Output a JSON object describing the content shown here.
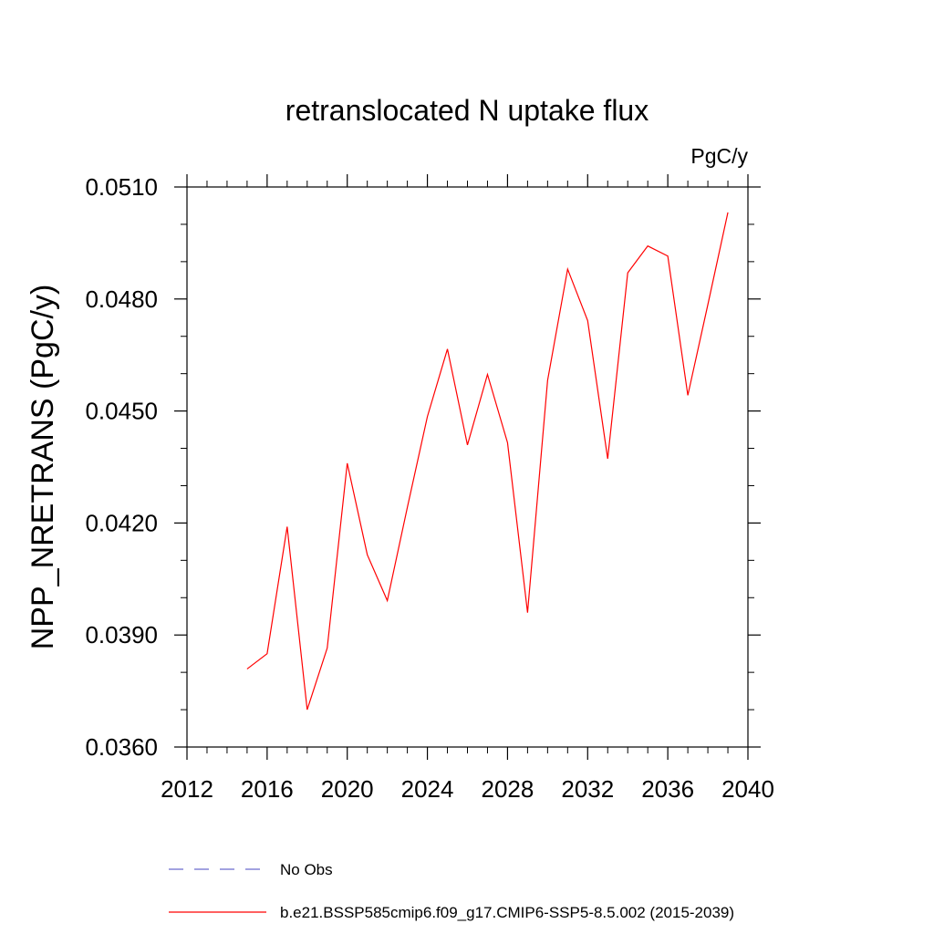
{
  "chart_data": {
    "type": "line",
    "title": "retranslocated N uptake flux",
    "units_label": "PgC/y",
    "ylabel": "NPP_NRETRANS  (PgC/y)",
    "xlabel": "",
    "xlim": [
      2012,
      2040
    ],
    "ylim": [
      0.036,
      0.051
    ],
    "x_ticks": [
      2012,
      2016,
      2020,
      2024,
      2028,
      2032,
      2036,
      2040
    ],
    "x_tick_labels": [
      "2012",
      "2016",
      "2020",
      "2024",
      "2028",
      "2032",
      "2036",
      "2040"
    ],
    "y_ticks": [
      0.036,
      0.039,
      0.042,
      0.045,
      0.048,
      0.051
    ],
    "y_tick_labels": [
      "0.0360",
      "0.0390",
      "0.0420",
      "0.0450",
      "0.0480",
      "0.0510"
    ],
    "x": [
      2015,
      2016,
      2017,
      2018,
      2019,
      2020,
      2021,
      2022,
      2023,
      2024,
      2025,
      2026,
      2027,
      2028,
      2029,
      2030,
      2031,
      2032,
      2033,
      2034,
      2035,
      2036,
      2037,
      2038,
      2039
    ],
    "series": [
      {
        "name": "b.e21.BSSP585cmip6.f09_g17.CMIP6-SSP5-8.5.002 (2015-2039)",
        "color": "#ff0000",
        "values": [
          0.03809,
          0.0385,
          0.0419,
          0.037,
          0.03865,
          0.0436,
          0.04115,
          0.03992,
          0.04242,
          0.04485,
          0.04666,
          0.04409,
          0.04598,
          0.04415,
          0.0396,
          0.04582,
          0.0488,
          0.04742,
          0.04372,
          0.0487,
          0.04942,
          0.04915,
          0.04542,
          0.04785,
          0.05032
        ]
      }
    ],
    "legend": [
      {
        "label": "No Obs",
        "color": "#6a6acd",
        "style": "dashed"
      },
      {
        "label": "b.e21.BSSP585cmip6.f09_g17.CMIP6-SSP5-8.5.002 (2015-2039)",
        "color": "#ff0000",
        "style": "solid"
      }
    ],
    "legend_position": "bottom",
    "grid": false
  }
}
